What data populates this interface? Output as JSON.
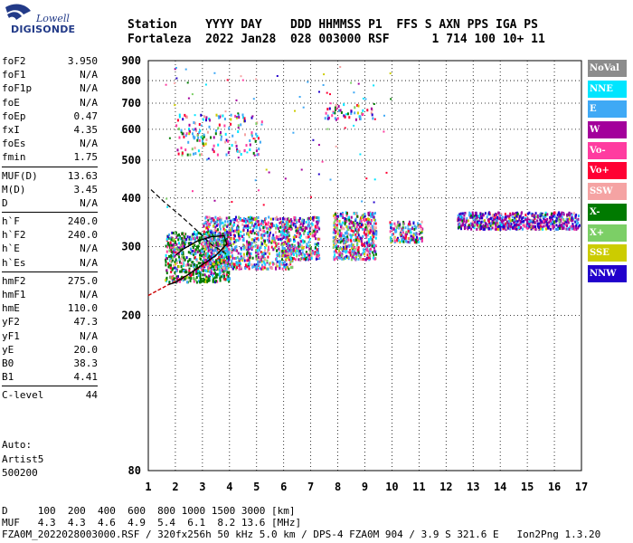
{
  "logo": {
    "line1": "Lowell",
    "line2": "DIGISONDE"
  },
  "header": {
    "line1": "Station    YYYY DAY    DDD HHMMSS P1  FFS S AXN PPS IGA PS",
    "line2": "Fortaleza  2022 Jan28  028 003000 RSF      1 714 100 10+ 11"
  },
  "params": {
    "group1": [
      {
        "label": "foF2",
        "value": "3.950"
      },
      {
        "label": "foF1",
        "value": "N/A"
      },
      {
        "label": "foF1p",
        "value": "N/A"
      },
      {
        "label": "foE",
        "value": "N/A"
      },
      {
        "label": "foEp",
        "value": "0.47"
      },
      {
        "label": "fxI",
        "value": "4.35"
      },
      {
        "label": "foEs",
        "value": "N/A"
      },
      {
        "label": "fmin",
        "value": "1.75"
      }
    ],
    "group2": [
      {
        "label": "MUF(D)",
        "value": "13.63"
      },
      {
        "label": "M(D)",
        "value": "3.45"
      },
      {
        "label": "D",
        "value": "N/A"
      }
    ],
    "group3": [
      {
        "label": "h`F",
        "value": "240.0"
      },
      {
        "label": "h`F2",
        "value": "240.0"
      },
      {
        "label": "h`E",
        "value": "N/A"
      },
      {
        "label": "h`Es",
        "value": "N/A"
      }
    ],
    "group4": [
      {
        "label": "hmF2",
        "value": "275.0"
      },
      {
        "label": "hmF1",
        "value": "N/A"
      },
      {
        "label": "hmE",
        "value": "110.0"
      },
      {
        "label": "yF2",
        "value": "47.3"
      },
      {
        "label": "yF1",
        "value": "N/A"
      },
      {
        "label": "yE",
        "value": "20.0"
      },
      {
        "label": "B0",
        "value": "38.3"
      },
      {
        "label": "B1",
        "value": "4.41"
      }
    ],
    "group5": [
      {
        "label": "C-level",
        "value": "44"
      }
    ]
  },
  "auto": {
    "line1": "Auto:",
    "line2": "Artist5",
    "line3": "500200"
  },
  "legend": [
    {
      "label": "NoVal",
      "color": "#8c8c8c"
    },
    {
      "label": "NNE",
      "color": "#00e5ff"
    },
    {
      "label": "E",
      "color": "#3fa9f5"
    },
    {
      "label": "W",
      "color": "#a3009b"
    },
    {
      "label": "Vo-",
      "color": "#ff3ca0"
    },
    {
      "label": "Vo+",
      "color": "#ff0033"
    },
    {
      "label": "SSW",
      "color": "#f5a3a3"
    },
    {
      "label": "X-",
      "color": "#007a00"
    },
    {
      "label": "X+",
      "color": "#7ccf66"
    },
    {
      "label": "SSE",
      "color": "#cccc00"
    },
    {
      "label": "NNW",
      "color": "#2200cc"
    }
  ],
  "footer": {
    "line1": "D     100  200  400  600  800 1000 1500 3000 [km]",
    "line2": "MUF   4.3  4.3  4.6  4.9  5.4  6.1  8.2 13.6 [MHz]",
    "line3": "FZA0M_2022028003000.RSF / 320fx256h 50 kHz 5.0 km / DPS-4 FZA0M 904 / 3.9 S 321.6 E   Ion2Png 1.3.20"
  },
  "chart_data": {
    "type": "scatter",
    "xlim": [
      1,
      17
    ],
    "ylim": [
      80,
      900
    ],
    "xticks": [
      "1",
      "2",
      "3",
      "4",
      "5",
      "6",
      "7",
      "8",
      "9",
      "10",
      "11",
      "12",
      "13",
      "14",
      "15",
      "16",
      "17"
    ],
    "yticks": [
      "80",
      "200",
      "300",
      "400",
      "500",
      "600",
      "700",
      "800",
      "900"
    ],
    "grid": true,
    "clusters": [
      {
        "name": "F-trace",
        "x": [
          1.6,
          4.0
        ],
        "y": [
          245,
          330
        ]
      },
      {
        "name": "F-main",
        "x": [
          3.0,
          6.3
        ],
        "y": [
          265,
          360
        ]
      },
      {
        "name": "block-6-7",
        "x": [
          5.9,
          7.3
        ],
        "y": [
          280,
          360
        ]
      },
      {
        "name": "block-8-9",
        "x": [
          7.8,
          9.4
        ],
        "y": [
          280,
          370
        ]
      },
      {
        "name": "block-10-11",
        "x": [
          9.9,
          11.1
        ],
        "y": [
          310,
          350
        ]
      },
      {
        "name": "block-13-17",
        "x": [
          12.4,
          16.9
        ],
        "y": [
          335,
          370
        ]
      },
      {
        "name": "second-hop",
        "x": [
          2.0,
          5.2
        ],
        "y": [
          520,
          660
        ]
      },
      {
        "name": "upper-scatter",
        "x": [
          7.5,
          9.3
        ],
        "y": [
          640,
          700
        ]
      }
    ],
    "trace_curve": {
      "x": [
        1.75,
        2.0,
        2.5,
        3.0,
        3.5,
        3.9,
        3.8,
        3.3,
        2.8,
        2.3,
        2.0
      ],
      "y": [
        240,
        243,
        255,
        270,
        285,
        305,
        320,
        318,
        310,
        296,
        285
      ]
    },
    "ordinary_curve": {
      "x": [
        1.0,
        1.75,
        2.5,
        3.0,
        3.5,
        3.95
      ],
      "y": [
        225,
        240,
        255,
        268,
        285,
        305
      ]
    },
    "dashed_profile": {
      "x": [
        1.1,
        1.6,
        2.2,
        2.8,
        3.3,
        3.8
      ],
      "y": [
        420,
        390,
        360,
        330,
        305,
        290
      ]
    }
  }
}
